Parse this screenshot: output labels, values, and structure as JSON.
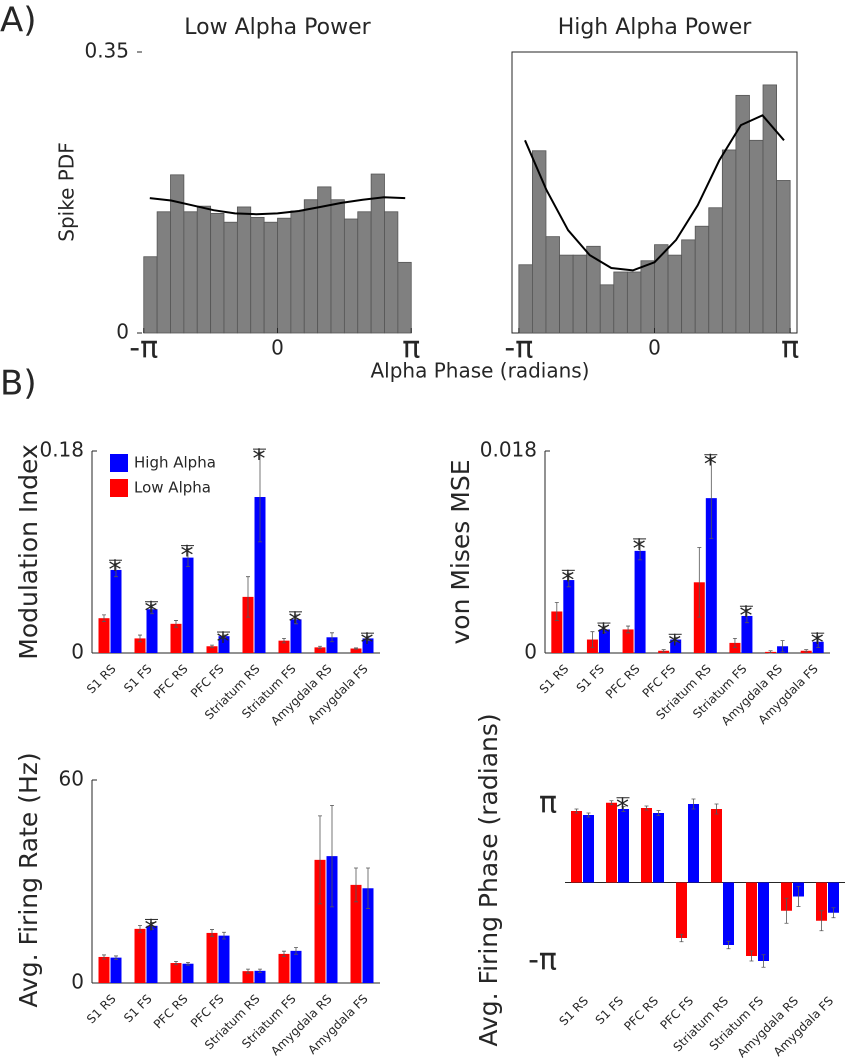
{
  "panel_labels": [
    "A)",
    "B)"
  ],
  "chart_data": [
    {
      "type": "histogram",
      "title": "Low Alpha Power",
      "ylabel": "Spike PDF",
      "xlabel": "Alpha Phase (radians)",
      "color": "#808080",
      "box": false,
      "bins": [
        -3.1416,
        -2.8274,
        -2.5133,
        -2.1991,
        -1.885,
        -1.5708,
        -1.2566,
        -0.9425,
        -0.6283,
        -0.3142,
        0,
        0.3142,
        0.6283,
        0.9425,
        1.2566,
        1.5708,
        1.885,
        2.1991,
        2.5133,
        2.8274,
        3.1416
      ],
      "values": [
        0.095,
        0.151,
        0.197,
        0.151,
        0.158,
        0.149,
        0.138,
        0.157,
        0.144,
        0.138,
        0.143,
        0.152,
        0.166,
        0.182,
        0.166,
        0.142,
        0.151,
        0.198,
        0.151,
        0.088
      ],
      "fit": {
        "x": [
          -3.0,
          -2.5,
          -2,
          -1.5,
          -1,
          -0.5,
          0,
          0.5,
          1,
          1.5,
          2,
          2.5,
          3.0
        ],
        "values": [
          0.168,
          0.165,
          0.159,
          0.153,
          0.149,
          0.148,
          0.149,
          0.152,
          0.157,
          0.162,
          0.166,
          0.169,
          0.168
        ],
        "color": "#000000"
      },
      "xlim": [
        -3.3,
        3.3
      ],
      "xticks": [
        {
          "value": -3.1416,
          "label": "-π"
        },
        0,
        {
          "value": 3.1416,
          "label": "π"
        }
      ],
      "ylim": [
        0,
        0.35
      ],
      "yticks": [
        0,
        0.35
      ]
    },
    {
      "type": "histogram",
      "title": "High Alpha Power",
      "color": "#808080",
      "box": true,
      "bins": [
        -3.1416,
        -2.8274,
        -2.5133,
        -2.1991,
        -1.885,
        -1.5708,
        -1.2566,
        -0.9425,
        -0.6283,
        -0.3142,
        0,
        0.3142,
        0.6283,
        0.9425,
        1.2566,
        1.5708,
        1.885,
        2.1991,
        2.5133,
        2.8274,
        3.1416
      ],
      "values": [
        0.085,
        0.227,
        0.12,
        0.097,
        0.097,
        0.108,
        0.06,
        0.076,
        0.076,
        0.09,
        0.11,
        0.097,
        0.116,
        0.133,
        0.156,
        0.228,
        0.296,
        0.24,
        0.309,
        0.19
      ],
      "fit": {
        "x": [
          -3.0,
          -2.5,
          -2,
          -1.5,
          -1,
          -0.5,
          0,
          0.5,
          1,
          1.5,
          2,
          2.5,
          3.0
        ],
        "values": [
          0.24,
          0.178,
          0.128,
          0.097,
          0.081,
          0.078,
          0.088,
          0.116,
          0.159,
          0.215,
          0.259,
          0.271,
          0.24
        ],
        "color": "#000000"
      },
      "xlim": [
        -3.3,
        3.3
      ],
      "xticks": [
        {
          "value": -3.1416,
          "label": "-π"
        },
        0,
        {
          "value": 3.1416,
          "label": "π"
        }
      ],
      "ylim": [
        0,
        0.35
      ]
    },
    {
      "type": "bar",
      "ylabel": "Modulation Index",
      "axis_lines": true,
      "legend": "upper left",
      "categories": [
        "S1 RS",
        "S1 FS",
        "PFC RS",
        "PFC FS",
        "Striatum RS",
        "Striatum FS",
        "Amygdala RS",
        "Amygdala FS"
      ],
      "series": [
        {
          "name": "High Alpha",
          "color": "#0000ff",
          "values": [
            0.074,
            0.039,
            0.085,
            0.015,
            0.139,
            0.03,
            0.014,
            0.013
          ],
          "errors": [
            0.006,
            0.004,
            0.008,
            0.001,
            0.04,
            0.004,
            0.004,
            0.002
          ]
        },
        {
          "name": "Low Alpha",
          "color": "#ff0000",
          "values": [
            0.031,
            0.013,
            0.026,
            0.006,
            0.05,
            0.011,
            0.005,
            0.004
          ],
          "errors": [
            0.003,
            0.003,
            0.003,
            0.001,
            0.018,
            0.002,
            0.001,
            0.0005
          ]
        }
      ],
      "significance_marker": "*",
      "significant": [
        true,
        true,
        true,
        true,
        true,
        true,
        false,
        true
      ],
      "ylim": [
        0,
        0.18
      ],
      "yticks": [
        0,
        0.18
      ]
    },
    {
      "type": "bar",
      "ylabel": "von Mises MSE",
      "axis_lines": true,
      "categories": [
        "S1 RS",
        "S1 FS",
        "PFC RS",
        "PFC FS",
        "Striatum RS",
        "Striatum FS",
        "Amygdala RS",
        "Amygdala FS"
      ],
      "series": [
        {
          "name": "High Alpha",
          "color": "#0000ff",
          "values": [
            0.0065,
            0.0021,
            0.0091,
            0.0012,
            0.0138,
            0.0033,
            0.0006,
            0.001
          ],
          "errors": [
            0.0006,
            0.0003,
            0.0008,
            0.0002,
            0.0036,
            0.0006,
            0.0005,
            0.0005
          ]
        },
        {
          "name": "Low Alpha",
          "color": "#ff0000",
          "values": [
            0.0037,
            0.0012,
            0.0021,
            0.0002,
            0.0063,
            0.0009,
            0.0001,
            0.0002
          ],
          "errors": [
            0.0008,
            0.0007,
            0.0003,
            0.0001,
            0.0031,
            0.0004,
            0.0001,
            0.0001
          ]
        }
      ],
      "significance_marker": "*",
      "significant": [
        true,
        true,
        true,
        true,
        true,
        true,
        false,
        true
      ],
      "ylim": [
        0,
        0.018
      ],
      "yticks": [
        0,
        0.018
      ]
    },
    {
      "type": "bar",
      "ylabel": "Avg. Firing Rate (Hz)",
      "axis_lines": true,
      "categories": [
        "S1 RS",
        "S1 FS",
        "PFC RS",
        "PFC FS",
        "Striatum RS",
        "Striatum FS",
        "Amygdala RS",
        "Amygdala FS"
      ],
      "series": [
        {
          "name": "High Alpha",
          "color": "#0000ff",
          "values": [
            7.5,
            16.9,
            5.7,
            14,
            3.6,
            9.5,
            37.5,
            28
          ],
          "errors": [
            0.5,
            1,
            0.4,
            1,
            0.5,
            1,
            15,
            6
          ]
        },
        {
          "name": "Low Alpha",
          "color": "#ff0000",
          "values": [
            7.7,
            16,
            5.9,
            14.8,
            3.5,
            8.6,
            36.4,
            29
          ],
          "errors": [
            0.6,
            1,
            0.5,
            1,
            0.6,
            0.8,
            13,
            5
          ]
        }
      ],
      "significance_marker": "*",
      "significant": [
        false,
        true,
        false,
        false,
        false,
        false,
        false,
        false
      ],
      "ylim": [
        0,
        60
      ],
      "yticks": [
        0,
        60
      ]
    },
    {
      "type": "bar",
      "ylabel": "Avg. Firing Phase (radians)",
      "axis_lines": false,
      "zero_line": true,
      "categories": [
        "S1 RS",
        "S1 FS",
        "PFC RS",
        "PFC FS",
        "Striatum RS",
        "Striatum FS",
        "Amygdala RS",
        "Amygdala FS"
      ],
      "series": [
        {
          "name": "High Alpha",
          "color": "#0000ff",
          "values": [
            2.7,
            2.94,
            2.78,
            3.14,
            -2.5,
            -3.14,
            -0.56,
            -1.21
          ],
          "errors": [
            0.08,
            0.1,
            0.1,
            0.2,
            0.15,
            0.25,
            0.4,
            0.2
          ]
        },
        {
          "name": "Low Alpha",
          "color": "#ff0000",
          "values": [
            2.86,
            3.19,
            2.98,
            -2.22,
            2.94,
            -2.94,
            -1.13,
            -1.53
          ],
          "errors": [
            0.08,
            0.08,
            0.08,
            0.15,
            0.2,
            0.2,
            0.5,
            0.4
          ]
        }
      ],
      "significance_marker": "*",
      "significant": [
        false,
        true,
        false,
        false,
        false,
        false,
        false,
        false
      ],
      "ylim": [
        -4.1,
        4.1
      ],
      "yticks": [
        {
          "value": 3.1416,
          "label": "π"
        },
        {
          "value": -3.1416,
          "label": "-π"
        }
      ]
    }
  ]
}
